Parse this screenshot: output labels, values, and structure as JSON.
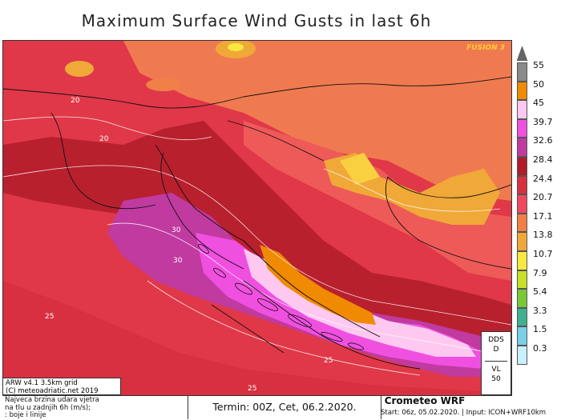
{
  "title": "Maximum Surface Wind Gusts in last 6h",
  "brand_tag": "FUSION 3",
  "legend": {
    "labels": [
      "55",
      "50",
      "45",
      "39.7",
      "32.6",
      "28.4",
      "24.4",
      "20.7",
      "17.1",
      "13.8",
      "10.7",
      "7.9",
      "5.4",
      "3.3",
      "1.5",
      "0.3"
    ],
    "colors": [
      "#8a8a8a",
      "#f08a00",
      "#ffc8f0",
      "#f050e0",
      "#c03aa0",
      "#b01a2a",
      "#d83040",
      "#f04860",
      "#f08048",
      "#f0a838",
      "#f8e840",
      "#c8e028",
      "#78c838",
      "#40b090",
      "#78d0e8",
      "#c8f0ff"
    ]
  },
  "map_labels": {
    "contours": [
      "20",
      "20",
      "30",
      "30",
      "25",
      "25",
      "25"
    ]
  },
  "info_box": {
    "line1": "ARW v4.1 3.5km grid",
    "line2": "(C) meteoadriatic.net 2019"
  },
  "description": {
    "line1": "Najveca brzina udara vjetra",
    "line2": "na tlu u zadnjih 6h (m/s);",
    "line3": ": boje i linije"
  },
  "termin": "Termin: 00Z, Cet, 06.2.2020.",
  "crometeo": {
    "name": "Crometeo WRF",
    "start": "Start: 06z, 05.02.2020. | Input: ICON+WRF10km"
  },
  "dds_box": {
    "top": "DDS",
    "d": "D",
    "vl": "VL",
    "value": "50"
  }
}
